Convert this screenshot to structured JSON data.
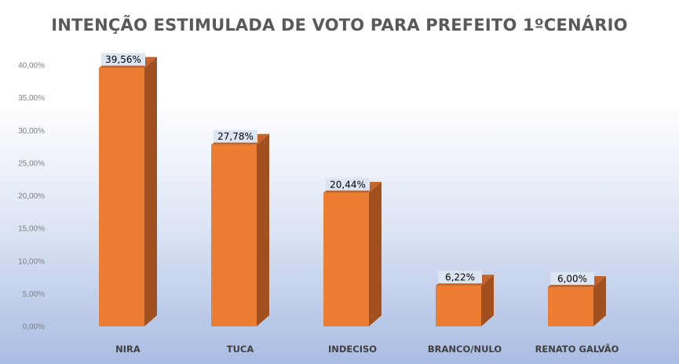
{
  "chart_data": {
    "type": "bar",
    "title": "INTENÇÃO ESTIMULADA DE VOTO PARA PREFEITO 1ºCENÁRIO",
    "categories": [
      "NIRA",
      "TUCA",
      "INDECISO",
      "BRANCO/NULO",
      "RENATO GALVÃO"
    ],
    "values": [
      39.56,
      27.78,
      20.44,
      6.22,
      6.0
    ],
    "data_labels": [
      "39,56%",
      "27,78%",
      "20,44%",
      "6,22%",
      "6,00%"
    ],
    "yticks": [
      "0,00%",
      "5,00%",
      "10,00%",
      "15,00%",
      "20,00%",
      "25,00%",
      "30,00%",
      "35,00%",
      "40,00%"
    ],
    "ylim": [
      0,
      40
    ],
    "grid": false,
    "legend": "none",
    "style": "3d-column",
    "colors": {
      "bar_front": "#ED7D31",
      "bar_side": "#A0511F",
      "bar_top": "#C4642A",
      "label_bg": "#DCE6F2"
    }
  }
}
